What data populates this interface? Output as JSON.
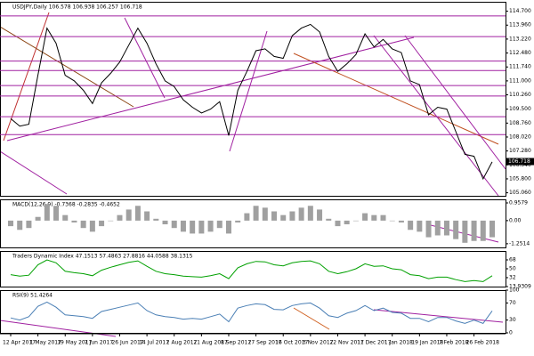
{
  "chart_data": [
    {
      "type": "line",
      "title": "USDJPY,Daily 106.578 106.938 106.257 106.718",
      "color": "#000000",
      "categories": [
        "12 Apr 2017",
        null,
        null,
        "1 May 2017",
        null,
        null,
        "19 May 2017",
        null,
        null,
        "7 Jun 2017",
        null,
        null,
        "26 Jun 2017",
        null,
        null,
        "14 Jul 2017",
        null,
        null,
        "2 Aug 2017",
        null,
        null,
        "21 Aug 2017",
        null,
        null,
        "8 Sep 2017",
        null,
        null,
        "27 Sep 2017",
        null,
        null,
        "16 Oct 2017",
        null,
        null,
        "3 Nov 2017",
        null,
        null,
        "22 Nov 2017",
        null,
        null,
        "11 Dec 2017",
        null,
        null,
        "1 Jan 2018",
        null,
        null,
        "19 Jan 2018",
        null,
        null,
        "7 Feb 2018",
        null,
        null,
        "26 Feb 2018",
        null,
        null
      ],
      "values": [
        109.0,
        108.6,
        108.7,
        111.3,
        113.8,
        113.0,
        111.3,
        111.0,
        110.5,
        109.8,
        110.9,
        111.4,
        112.0,
        112.9,
        113.8,
        113.0,
        111.9,
        111.0,
        110.7,
        110.0,
        109.6,
        109.3,
        109.5,
        109.9,
        108.1,
        110.5,
        111.5,
        112.6,
        112.7,
        112.3,
        112.2,
        113.4,
        113.8,
        114.0,
        113.6,
        112.3,
        111.5,
        111.9,
        112.4,
        113.5,
        112.8,
        113.2,
        112.7,
        112.5,
        111.0,
        110.8,
        109.2,
        109.6,
        109.5,
        108.3,
        107.1,
        107.0,
        105.8,
        106.7
      ],
      "ylim": [
        104.9,
        115.2
      ],
      "yticks": [
        {
          "value": 114.7,
          "label": "114.700"
        },
        {
          "value": 113.96,
          "label": "113.960"
        },
        {
          "value": 113.22,
          "label": "113.220"
        },
        {
          "value": 112.48,
          "label": "112.480"
        },
        {
          "value": 111.74,
          "label": "111.740"
        },
        {
          "value": 111.0,
          "label": "111.000"
        },
        {
          "value": 110.26,
          "label": "110.260"
        },
        {
          "value": 109.5,
          "label": "109.500"
        },
        {
          "value": 108.76,
          "label": "108.760"
        },
        {
          "value": 108.02,
          "label": "108.020"
        },
        {
          "value": 107.28,
          "label": "107.280"
        },
        {
          "value": 106.54,
          "label": "106.540"
        },
        {
          "value": 105.8,
          "label": "105.800"
        },
        {
          "value": 105.06,
          "label": "105.060"
        }
      ],
      "last_price": 106.718,
      "levels": [
        114.45,
        113.35,
        112.05,
        111.55,
        110.75,
        110.2,
        109.1,
        108.15
      ],
      "level_color": "#a020a0"
    },
    {
      "type": "bar",
      "title": "MACD(12,26,9) -0.7368 -0.2835 -0.4652",
      "color": "#a0a0a0",
      "values": [
        -0.3,
        -0.5,
        -0.4,
        0.2,
        0.9,
        0.8,
        0.3,
        -0.1,
        -0.4,
        -0.6,
        -0.3,
        0.0,
        0.3,
        0.6,
        0.8,
        0.5,
        0.1,
        -0.2,
        -0.4,
        -0.6,
        -0.7,
        -0.7,
        -0.6,
        -0.4,
        -0.7,
        -0.1,
        0.4,
        0.8,
        0.7,
        0.5,
        0.3,
        0.5,
        0.7,
        0.8,
        0.6,
        0.1,
        -0.3,
        -0.2,
        0.0,
        0.4,
        0.3,
        0.3,
        0.0,
        -0.1,
        -0.5,
        -0.6,
        -0.9,
        -0.8,
        -0.8,
        -1.0,
        -1.2,
        -1.1,
        -1.1,
        -0.9
      ],
      "ylim": [
        -1.45,
        1.15
      ],
      "yticks": [
        0.9579,
        {
          "value": 0,
          "label": "0.00"
        },
        -1.2514
      ]
    },
    {
      "type": "line",
      "title": "Traders Dynamic Index 47.1513 57.4863 27.8816 44.0588 38.1315",
      "color": "#00a000",
      "values": [
        38,
        35,
        37,
        58,
        68,
        62,
        45,
        42,
        40,
        36,
        47,
        53,
        58,
        63,
        66,
        55,
        45,
        40,
        38,
        35,
        34,
        33,
        36,
        40,
        30,
        52,
        60,
        65,
        64,
        58,
        56,
        62,
        65,
        66,
        60,
        45,
        40,
        44,
        50,
        60,
        55,
        56,
        50,
        48,
        38,
        36,
        30,
        33,
        33,
        28,
        24,
        26,
        24,
        36
      ],
      "ylim": [
        13.9309,
        86
      ],
      "yticks": [
        68,
        50,
        32,
        13.9309
      ]
    },
    {
      "type": "line",
      "title": "RSI(9) 51.4264",
      "color": "#4a7fb5",
      "values": [
        35,
        30,
        38,
        62,
        72,
        60,
        42,
        40,
        38,
        34,
        50,
        55,
        60,
        65,
        70,
        52,
        42,
        38,
        36,
        32,
        34,
        32,
        38,
        44,
        26,
        58,
        64,
        68,
        66,
        55,
        54,
        64,
        68,
        70,
        58,
        40,
        36,
        46,
        52,
        64,
        52,
        58,
        48,
        46,
        34,
        34,
        26,
        36,
        36,
        28,
        22,
        30,
        22,
        51.4264
      ],
      "ylim": [
        0,
        100
      ],
      "yticks": [
        100,
        70,
        30,
        0
      ]
    }
  ]
}
